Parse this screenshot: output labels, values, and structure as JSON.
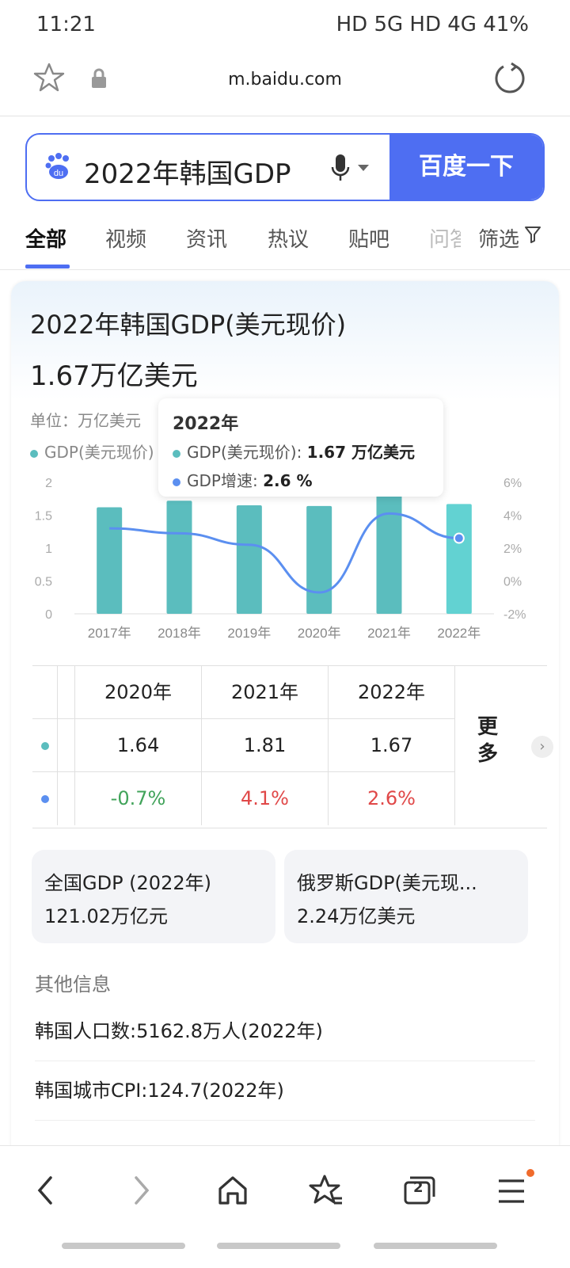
{
  "status": {
    "time": "11:21",
    "right": "HD 5G HD 4G 41%"
  },
  "browser": {
    "url": "m.baidu.com"
  },
  "search": {
    "query": "2022年韩国GDP",
    "button": "百度一下"
  },
  "tabs": [
    "全部",
    "视频",
    "资讯",
    "热议",
    "贴吧",
    "问答"
  ],
  "filter_label": "筛选",
  "card": {
    "title": "2022年韩国GDP(美元现价)",
    "value": "1.67万亿美元",
    "unit": "单位：万亿美元",
    "legend_gdp": "GDP(美元现价)"
  },
  "tooltip": {
    "title": "2022年",
    "gdp_label": "GDP(美元现价):",
    "gdp_value": "1.67 万亿美元",
    "growth_label": "GDP增速:",
    "growth_value": "2.6 %"
  },
  "chart_data": {
    "type": "bar",
    "categories": [
      "2017年",
      "2018年",
      "2019年",
      "2020年",
      "2021年",
      "2022年"
    ],
    "series": [
      {
        "name": "GDP(美元现价)",
        "type": "bar",
        "values": [
          1.62,
          1.72,
          1.65,
          1.64,
          1.81,
          1.67
        ]
      },
      {
        "name": "GDP增速",
        "type": "line",
        "values": [
          3.2,
          2.9,
          2.2,
          -0.7,
          4.1,
          2.6
        ]
      }
    ],
    "y_left": {
      "ticks": [
        "2",
        "1.5",
        "1",
        "0.5",
        "0"
      ],
      "range": [
        0,
        2
      ]
    },
    "y_right": {
      "ticks": [
        "6%",
        "4%",
        "2%",
        "0%",
        "-2%"
      ],
      "range": [
        -2,
        6
      ]
    },
    "colors": {
      "bar": "#5bbdbe",
      "bar_active": "#62d2d2",
      "line": "#5b8ff0"
    }
  },
  "table": {
    "years": [
      "2020年",
      "2021年",
      "2022年"
    ],
    "gdp": [
      "1.64",
      "1.81",
      "1.67"
    ],
    "growth": [
      "-0.7%",
      "4.1%",
      "2.6%"
    ],
    "more": "更多"
  },
  "related": [
    {
      "title": "全国GDP (2022年)",
      "value": "121.02万亿元"
    },
    {
      "title": "俄罗斯GDP(美元现...",
      "value": "2.24万亿美元"
    }
  ],
  "other_title": "其他信息",
  "other_info": [
    "韩国人口数:5162.8万人(2022年)",
    "韩国城市CPI:124.7(2022年)"
  ],
  "bottom_nav": {
    "tab_count": "2"
  }
}
